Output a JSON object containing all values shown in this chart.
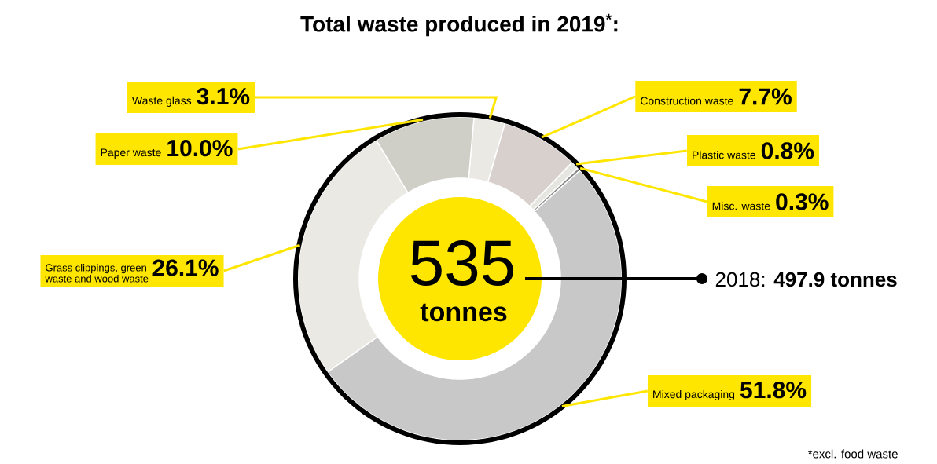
{
  "chart_data": {
    "type": "donut",
    "title": "Total waste produced in 2019$^{*}$:",
    "categories": [
      "Waste glass",
      "Construction waste",
      "Plastic waste",
      "Misc. waste",
      "Mixed packaging",
      "Grass clippings, green waste and wood waste",
      "Paper waste"
    ],
    "values": [
      3.1,
      7.7,
      0.8,
      0.3,
      51.8,
      26.1,
      10.0
    ],
    "value_labels": [
      "3.1%",
      "7.7%",
      "0.8%",
      "0.3%",
      "51.8%",
      "26.1%",
      "10.0%"
    ],
    "colors": [
      "#ebe9e4",
      "#d8d0cd",
      "#e6e6e0",
      "#888888",
      "#c8c8c8",
      "#ebe9e3",
      "#cfcfc7"
    ],
    "annotations": [
      "535",
      "tonnes",
      "2018: **497.9 tonnes**",
      "*excl. food waste"
    ]
  }
}
